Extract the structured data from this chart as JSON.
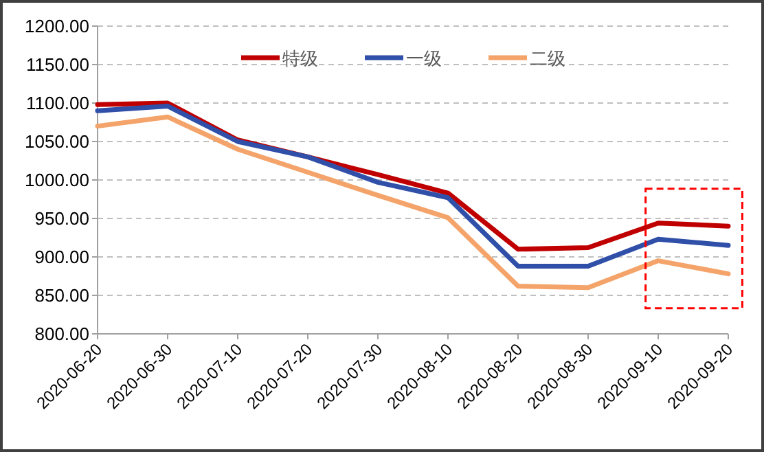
{
  "chart_data": {
    "type": "line",
    "categories": [
      "2020-06-20",
      "2020-06-30",
      "2020-07-10",
      "2020-07-20",
      "2020-07-30",
      "2020-08-10",
      "2020-08-20",
      "2020-08-30",
      "2020-09-10",
      "2020-09-20"
    ],
    "series": [
      {
        "name": "特级",
        "color": "#c00000",
        "values": [
          1098,
          1100,
          1052,
          1030,
          1007,
          983,
          910,
          912,
          944,
          940
        ]
      },
      {
        "name": "一级",
        "color": "#2f4fa8",
        "values": [
          1090,
          1096,
          1050,
          1030,
          997,
          977,
          888,
          888,
          923,
          915
        ]
      },
      {
        "name": "二级",
        "color": "#f4a46a",
        "values": [
          1070,
          1082,
          1040,
          1010,
          980,
          951,
          862,
          860,
          895,
          878
        ]
      }
    ],
    "ylim": [
      800,
      1200
    ],
    "yticks": [
      {
        "value": 800,
        "label": "800.00"
      },
      {
        "value": 850,
        "label": "850.00"
      },
      {
        "value": 900,
        "label": "900.00"
      },
      {
        "value": 950,
        "label": "950.00"
      },
      {
        "value": 1000,
        "label": "1000.00"
      },
      {
        "value": 1050,
        "label": "1050.00"
      },
      {
        "value": 1100,
        "label": "1100.00"
      },
      {
        "value": 1150,
        "label": "1150.00"
      },
      {
        "value": 1200,
        "label": "1200.00"
      }
    ],
    "grid": "y",
    "legend": "top",
    "line_style": "solid",
    "marker": "none"
  }
}
